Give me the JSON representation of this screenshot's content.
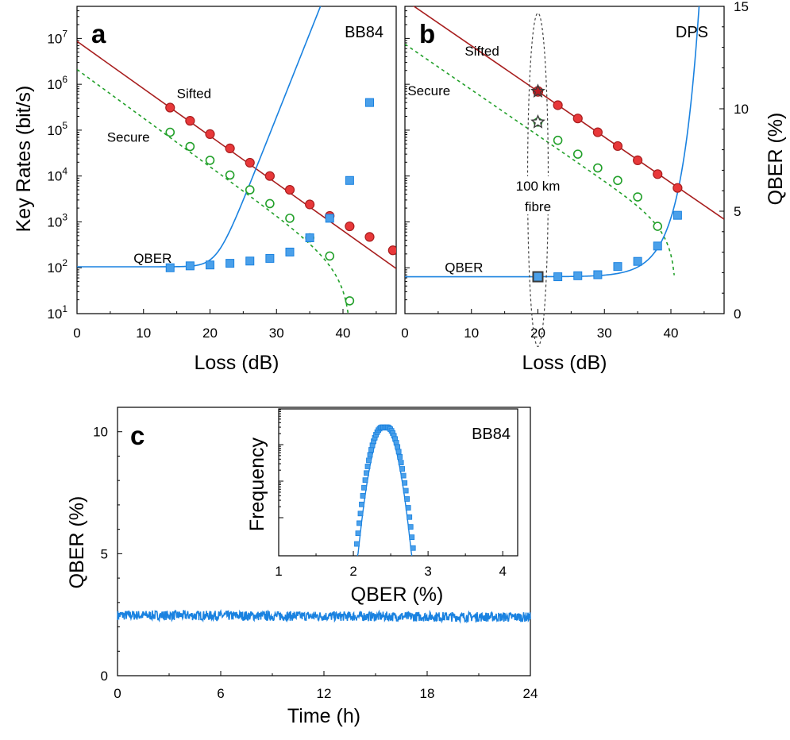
{
  "figure": {
    "panel_a": {
      "letter": "a",
      "label": "BB84"
    },
    "panel_b": {
      "letter": "b",
      "label": "DPS"
    },
    "panel_c": {
      "letter": "c",
      "inset_label": "BB84"
    }
  },
  "colors": {
    "sifted": "#a81e1e",
    "sifted_fill": "#e8383a",
    "secure": "#22a02a",
    "qber": "#1a82e0",
    "qber_fill": "#4aa0ea",
    "star": "#3a3a3a"
  },
  "chart_data": [
    {
      "panel": "a",
      "type": "scatter",
      "title": "BB84",
      "xlabel": "Loss (dB)",
      "ylabel": "Key Rates (bit/s)",
      "xlim": [
        0,
        48
      ],
      "ylim": [
        10,
        50000000
      ],
      "yscale": "log",
      "xticks": [
        "0",
        "10",
        "20",
        "30",
        "40"
      ],
      "yticks": [
        "10^1",
        "10^2",
        "10^3",
        "10^4",
        "10^5",
        "10^6",
        "10^7"
      ],
      "series": [
        {
          "name": "Sifted",
          "marker": "filled-circle",
          "x": [
            14,
            17,
            20,
            23,
            26,
            29,
            32,
            35,
            38,
            41,
            44,
            47.5
          ],
          "values": [
            310000,
            160000,
            82000,
            40000,
            19500,
            10000,
            5000,
            2400,
            1350,
            800,
            470,
            240
          ]
        },
        {
          "name": "Secure",
          "marker": "open-circle",
          "x": [
            14,
            17,
            20,
            23,
            26,
            29,
            32,
            35,
            38,
            41
          ],
          "values": [
            90000,
            44000,
            22000,
            10500,
            5000,
            2500,
            1200,
            450,
            180,
            19
          ]
        },
        {
          "name": "QBER",
          "marker": "square",
          "x": [
            14,
            17,
            20,
            23,
            26,
            29,
            32,
            35,
            38,
            41,
            44
          ],
          "values": [
            100,
            110,
            115,
            125,
            140,
            160,
            220,
            450,
            1200,
            8000,
            400000
          ]
        }
      ]
    },
    {
      "panel": "b",
      "type": "scatter",
      "title": "DPS",
      "xlabel": "Loss (dB)",
      "ylabel_right": "QBER (%)",
      "xlim": [
        0,
        48
      ],
      "y2lim": [
        0,
        15
      ],
      "xticks": [
        "0",
        "10",
        "20",
        "30",
        "40"
      ],
      "y2ticks": [
        "0",
        "5",
        "10",
        "15"
      ],
      "annotation": "100 km\nfibre",
      "series": [
        {
          "name": "Sifted",
          "marker": "filled-circle",
          "x": [
            20,
            23,
            26,
            29,
            32,
            35,
            38,
            41
          ],
          "values": [
            700000,
            350000,
            180000,
            90000,
            45000,
            22000,
            11000,
            5500
          ]
        },
        {
          "name": "Secure",
          "marker": "open-circle",
          "x": [
            20,
            23,
            26,
            29,
            32,
            35,
            38
          ],
          "values": [
            150000,
            60000,
            30000,
            15000,
            8000,
            3500,
            800
          ]
        },
        {
          "name": "QBER",
          "marker": "square",
          "x": [
            20,
            23,
            26,
            29,
            32,
            35,
            38,
            41
          ],
          "values": [
            1.8,
            1.8,
            1.85,
            1.9,
            2.3,
            2.55,
            3.3,
            4.8
          ]
        }
      ]
    },
    {
      "panel": "c",
      "type": "line",
      "xlabel": "Time (h)",
      "ylabel": "QBER (%)",
      "xlim": [
        0,
        24
      ],
      "ylim": [
        0,
        11
      ],
      "xticks": [
        "0",
        "6",
        "12",
        "18",
        "24"
      ],
      "yticks": [
        "0",
        "5",
        "10"
      ],
      "series": [
        {
          "name": "QBER",
          "mean": 2.4,
          "spread": 0.2
        }
      ]
    },
    {
      "panel": "c-inset",
      "type": "scatter",
      "title": "BB84",
      "xlabel": "QBER (%)",
      "ylabel": "Frequency",
      "xlim": [
        1,
        4.2
      ],
      "xticks": [
        "1",
        "2",
        "3",
        "4"
      ],
      "peak": 2.42,
      "sigma": 0.15
    }
  ]
}
